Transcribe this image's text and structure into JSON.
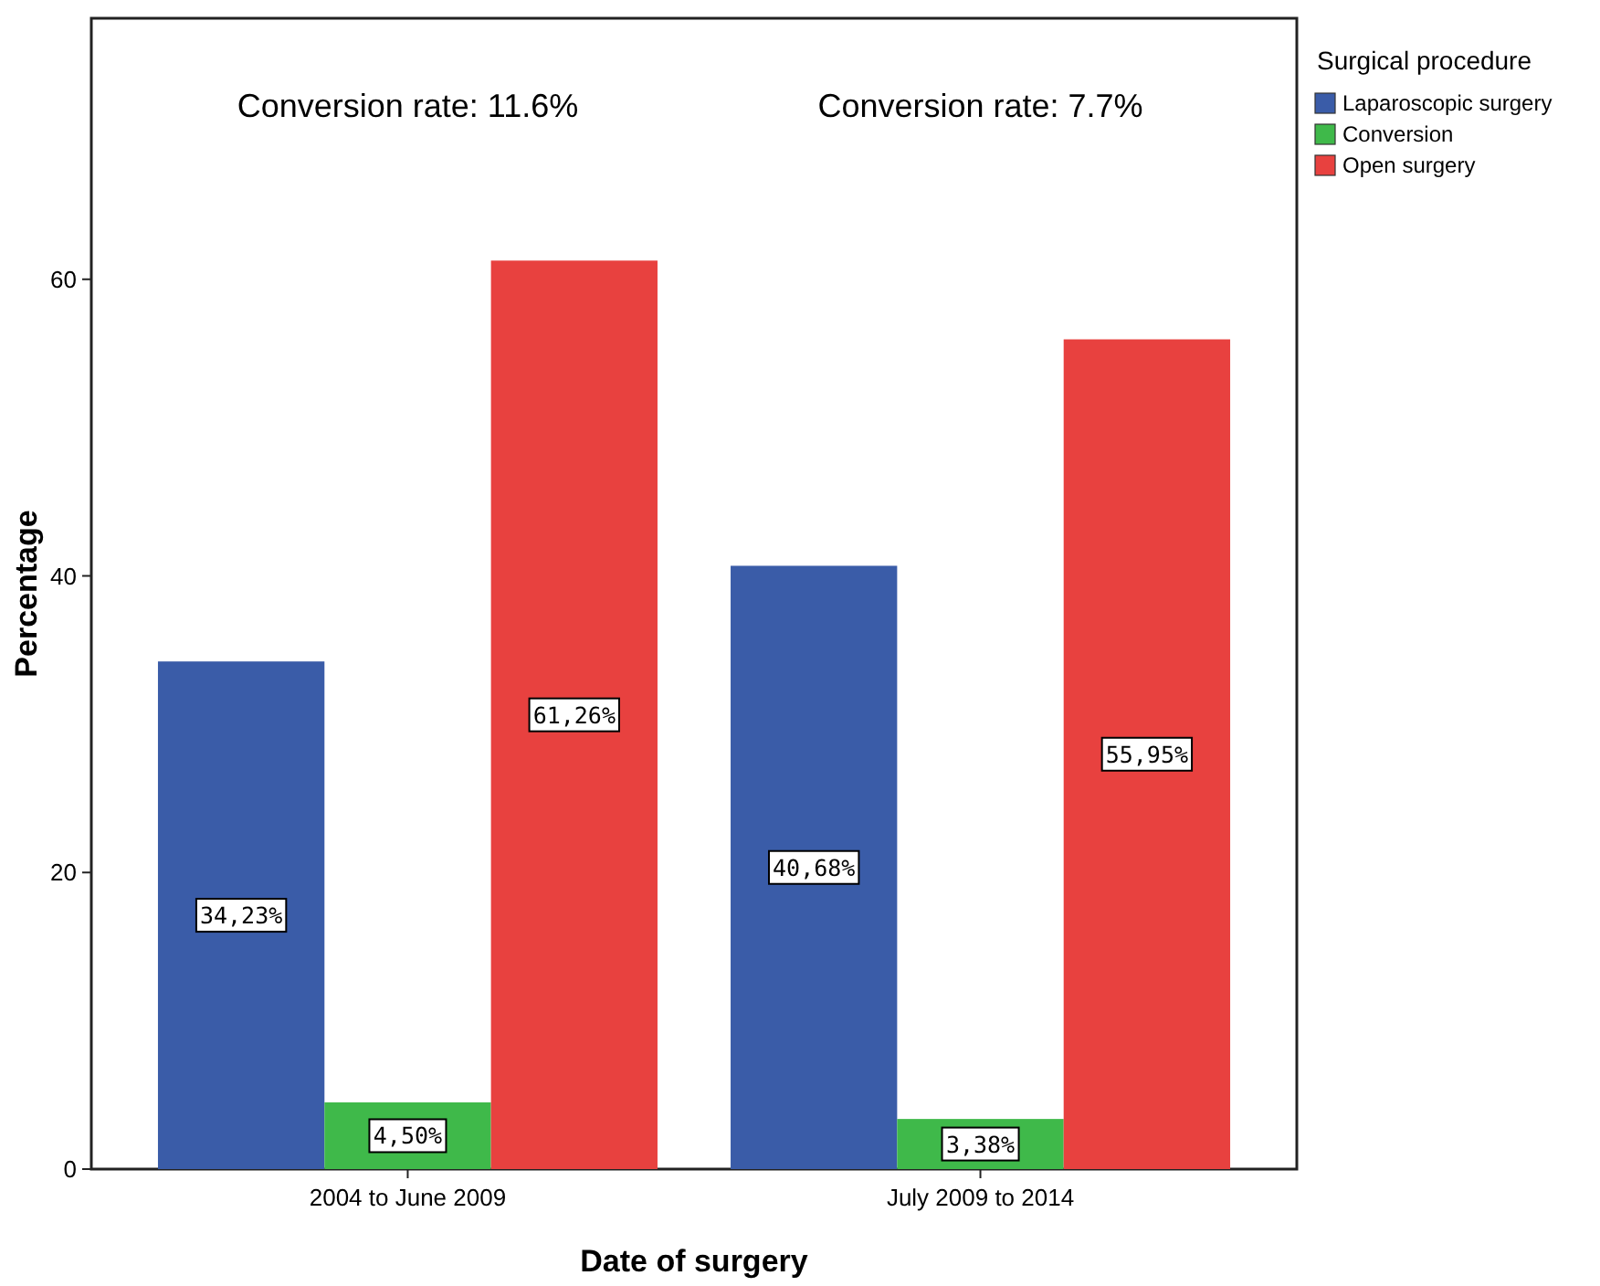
{
  "chart_data": {
    "type": "bar",
    "xlabel": "Date of surgery",
    "ylabel": "Percentage",
    "legend_title": "Surgical procedure",
    "legend": "top right",
    "grid": false,
    "categories": [
      "2004 to June 2009",
      "July 2009 to 2014"
    ],
    "ylim": [
      0,
      77.6
    ],
    "yticks": [
      0,
      20,
      40,
      60
    ],
    "series": [
      {
        "name": "Laparoscopic surgery",
        "color": "#3a5ca8",
        "values": [
          34.23,
          40.68
        ],
        "value_labels": [
          "34,23%",
          "40,68%"
        ]
      },
      {
        "name": "Conversion",
        "color": "#3fb94a",
        "values": [
          4.5,
          3.38
        ],
        "value_labels": [
          "4,50%",
          "3,38%"
        ]
      },
      {
        "name": "Open surgery",
        "color": "#e8413f",
        "values": [
          61.26,
          55.95
        ],
        "value_labels": [
          "61,26%",
          "55,95%"
        ]
      }
    ],
    "annotations": [
      "Conversion rate: 11.6%",
      "Conversion rate: 7.7%"
    ]
  }
}
